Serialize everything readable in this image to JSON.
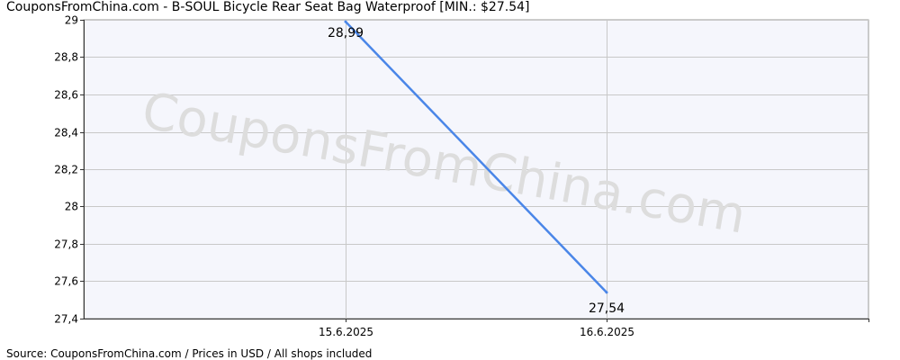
{
  "title": "CouponsFromChina.com - B-SOUL Bicycle Rear Seat Bag Waterproof [MIN.: $27.54]",
  "footer": "Source: CouponsFromChina.com / Prices in USD / All shops included",
  "watermark": "CouponsFromChina.com",
  "colors": {
    "plot_background": "#f5f6fc",
    "grid": "#c8c8c8",
    "line": "#4a86e8",
    "watermark": "#dddddd"
  },
  "chart_data": {
    "type": "line",
    "title": "CouponsFromChina.com - B-SOUL Bicycle Rear Seat Bag Waterproof [MIN.: $27.54]",
    "categories": [
      "15.6.2025",
      "16.6.2025"
    ],
    "series": [
      {
        "values": [
          28.99,
          27.54
        ],
        "labels": [
          "28,99",
          "27,54"
        ]
      }
    ],
    "ylim": [
      27.4,
      29
    ],
    "yticks": [
      27.4,
      27.6,
      27.8,
      28,
      28.2,
      28.4,
      28.6,
      28.8,
      29
    ],
    "ytick_labels": [
      "27,4",
      "27,6",
      "27,8",
      "28",
      "28,2",
      "28,4",
      "28,6",
      "28,8",
      "29"
    ],
    "grid": true,
    "legend": "none"
  }
}
